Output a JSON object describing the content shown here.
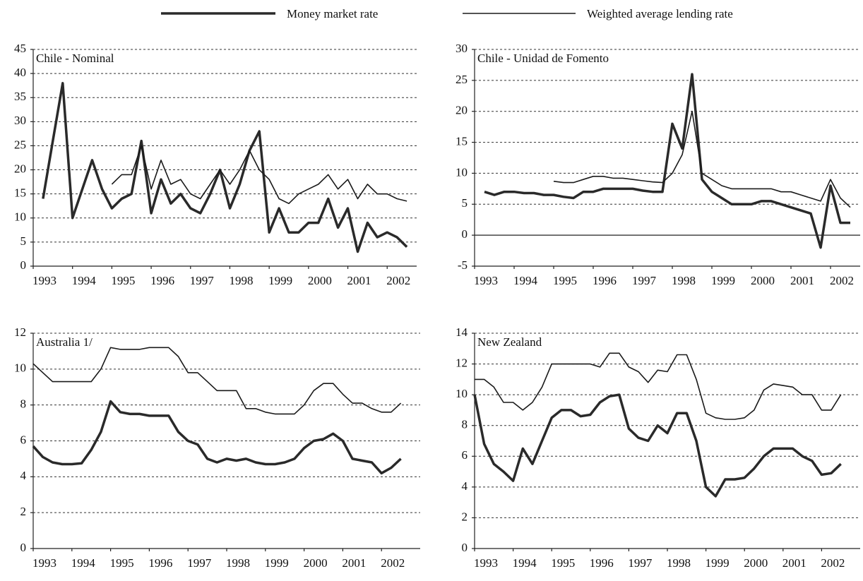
{
  "chart_data": [
    {
      "type": "line",
      "title": "Chile - Nominal",
      "x": [
        1993.25,
        1993.5,
        1993.75,
        1994,
        1994.25,
        1994.5,
        1994.75,
        1995,
        1995.25,
        1995.5,
        1995.75,
        1996,
        1996.25,
        1996.5,
        1996.75,
        1997,
        1997.25,
        1997.5,
        1997.75,
        1998,
        1998.25,
        1998.5,
        1998.75,
        1999,
        1999.25,
        1999.5,
        1999.75,
        2000,
        2000.25,
        2000.5,
        2000.75,
        2001,
        2001.25,
        2001.5,
        2001.75,
        2002,
        2002.25,
        2002.5
      ],
      "xlim": [
        1993,
        2002.75
      ],
      "xticks": [
        1993,
        1994,
        1995,
        1996,
        1997,
        1998,
        1999,
        2000,
        2001,
        2002
      ],
      "ylim": [
        0,
        45
      ],
      "yticks": [
        0,
        5,
        10,
        15,
        20,
        25,
        30,
        35,
        40,
        45
      ],
      "grid": true,
      "series": [
        {
          "name": "Money market rate",
          "color": "#2a2a2a",
          "values": [
            14,
            26,
            38,
            10,
            16,
            22,
            16,
            12,
            14,
            15,
            26,
            11,
            18,
            13,
            15,
            12,
            11,
            15,
            20,
            12,
            17,
            24,
            28,
            7,
            12,
            7,
            7,
            9,
            9,
            14,
            8,
            12,
            3,
            9,
            6,
            7,
            6,
            4
          ]
        },
        {
          "name": "Weighted average lending rate",
          "color": "#1a1a1a",
          "values": [
            null,
            null,
            null,
            null,
            null,
            null,
            null,
            17,
            19,
            19,
            25,
            16,
            22,
            17,
            18,
            15,
            14,
            17,
            20,
            17,
            20,
            24,
            20,
            18,
            14,
            13,
            15,
            16,
            17,
            19,
            16,
            18,
            14,
            17,
            15,
            15,
            14,
            13.5
          ]
        }
      ]
    },
    {
      "type": "line",
      "title": "Chile - Unidad de Fomento",
      "x": [
        1993.25,
        1993.5,
        1993.75,
        1994,
        1994.25,
        1994.5,
        1994.75,
        1995,
        1995.25,
        1995.5,
        1995.75,
        1996,
        1996.25,
        1996.5,
        1996.75,
        1997,
        1997.25,
        1997.5,
        1997.75,
        1998,
        1998.25,
        1998.5,
        1998.75,
        1999,
        1999.25,
        1999.5,
        1999.75,
        2000,
        2000.25,
        2000.5,
        2000.75,
        2001,
        2001.25,
        2001.5,
        2001.75,
        2002,
        2002.25,
        2002.5
      ],
      "xlim": [
        1993,
        2002.75
      ],
      "xticks": [
        1993,
        1994,
        1995,
        1996,
        1997,
        1998,
        1999,
        2000,
        2001,
        2002
      ],
      "ylim": [
        -5,
        30
      ],
      "yticks": [
        -5,
        0,
        5,
        10,
        15,
        20,
        25,
        30
      ],
      "grid": true,
      "series": [
        {
          "color": "#2a2a2a",
          "values": [
            7,
            6.5,
            7,
            7,
            6.8,
            6.8,
            6.5,
            6.5,
            6.2,
            6,
            7,
            7,
            7.5,
            7.5,
            7.5,
            7.5,
            7.2,
            7,
            7,
            18,
            14,
            26,
            9,
            7,
            6,
            5,
            5,
            5,
            5.5,
            5.5,
            5,
            4.5,
            4,
            3.5,
            -2,
            8,
            2,
            2
          ]
        },
        {
          "color": "#1a1a1a",
          "values": [
            null,
            null,
            null,
            null,
            null,
            null,
            null,
            8.7,
            8.5,
            8.5,
            9,
            9.5,
            9.5,
            9.2,
            9.2,
            9,
            8.8,
            8.6,
            8.5,
            10,
            13,
            20,
            10,
            9,
            8,
            7.5,
            7.5,
            7.5,
            7.5,
            7.5,
            7,
            7,
            6.5,
            6,
            5.5,
            9,
            6,
            4.5
          ]
        }
      ]
    },
    {
      "type": "line",
      "title": "Australia 1/",
      "x": [
        1993,
        1993.25,
        1993.5,
        1993.75,
        1994,
        1994.25,
        1994.5,
        1994.75,
        1995,
        1995.25,
        1995.5,
        1995.75,
        1996,
        1996.25,
        1996.5,
        1996.75,
        1997,
        1997.25,
        1997.5,
        1997.75,
        1998,
        1998.25,
        1998.5,
        1998.75,
        1999,
        1999.25,
        1999.5,
        1999.75,
        2000,
        2000.25,
        2000.5,
        2000.75,
        2001,
        2001.25,
        2001.5,
        2001.75,
        2002,
        2002.25,
        2002.5
      ],
      "xlim": [
        1993,
        2003
      ],
      "xticks": [
        1993,
        1994,
        1995,
        1996,
        1997,
        1998,
        1999,
        2000,
        2001,
        2002
      ],
      "ylim": [
        0,
        12
      ],
      "yticks": [
        0,
        2,
        4,
        6,
        8,
        10,
        12
      ],
      "grid": true,
      "series": [
        {
          "color": "#2a2a2a",
          "values": [
            5.7,
            5.1,
            4.8,
            4.7,
            4.7,
            4.75,
            5.5,
            6.5,
            8.2,
            7.6,
            7.5,
            7.5,
            7.4,
            7.4,
            7.4,
            6.5,
            6,
            5.8,
            5,
            4.8,
            5,
            4.9,
            5,
            4.8,
            4.7,
            4.7,
            4.8,
            5,
            5.6,
            6,
            6.1,
            6.4,
            6,
            5,
            4.9,
            4.8,
            4.2,
            4.5,
            5
          ]
        },
        {
          "color": "#1a1a1a",
          "values": [
            10.3,
            9.8,
            9.3,
            9.3,
            9.3,
            9.3,
            9.3,
            10,
            11.2,
            11.1,
            11.1,
            11.1,
            11.2,
            11.2,
            11.2,
            10.7,
            9.8,
            9.8,
            9.3,
            8.8,
            8.8,
            8.8,
            7.8,
            7.8,
            7.6,
            7.5,
            7.5,
            7.5,
            8,
            8.8,
            9.2,
            9.2,
            8.6,
            8.1,
            8.1,
            7.8,
            7.6,
            7.6,
            8.1
          ]
        }
      ]
    },
    {
      "type": "line",
      "title": "New Zealand",
      "x": [
        1993,
        1993.25,
        1993.5,
        1993.75,
        1994,
        1994.25,
        1994.5,
        1994.75,
        1995,
        1995.25,
        1995.5,
        1995.75,
        1996,
        1996.25,
        1996.5,
        1996.75,
        1997,
        1997.25,
        1997.5,
        1997.75,
        1998,
        1998.25,
        1998.5,
        1998.75,
        1999,
        1999.25,
        1999.5,
        1999.75,
        2000,
        2000.25,
        2000.5,
        2000.75,
        2001,
        2001.25,
        2001.5,
        2001.75,
        2002,
        2002.25,
        2002.5
      ],
      "xlim": [
        1993,
        2003
      ],
      "xticks": [
        1993,
        1994,
        1995,
        1996,
        1997,
        1998,
        1999,
        2000,
        2001,
        2002
      ],
      "ylim": [
        0,
        14
      ],
      "yticks": [
        0,
        2,
        4,
        6,
        8,
        10,
        12,
        14
      ],
      "grid": true,
      "series": [
        {
          "color": "#2a2a2a",
          "values": [
            10,
            6.8,
            5.5,
            5,
            4.4,
            6.5,
            5.5,
            7,
            8.5,
            9,
            9,
            8.6,
            8.7,
            9.5,
            9.9,
            10,
            7.8,
            7.2,
            7,
            8,
            7.5,
            8.8,
            8.8,
            7,
            4,
            3.4,
            4.5,
            4.5,
            4.6,
            5.2,
            6,
            6.5,
            6.5,
            6.5,
            6,
            5.7,
            4.8,
            4.9,
            5.5
          ]
        },
        {
          "color": "#1a1a1a",
          "values": [
            11,
            11,
            10.5,
            9.5,
            9.5,
            9,
            9.5,
            10.5,
            12,
            12,
            12,
            12,
            12,
            11.8,
            12.7,
            12.7,
            11.8,
            11.5,
            10.8,
            11.6,
            11.5,
            12.6,
            12.6,
            11,
            8.8,
            8.5,
            8.4,
            8.4,
            8.5,
            9,
            10.3,
            10.7,
            10.6,
            10.5,
            10,
            10,
            9,
            9,
            10
          ]
        }
      ]
    }
  ]
}
